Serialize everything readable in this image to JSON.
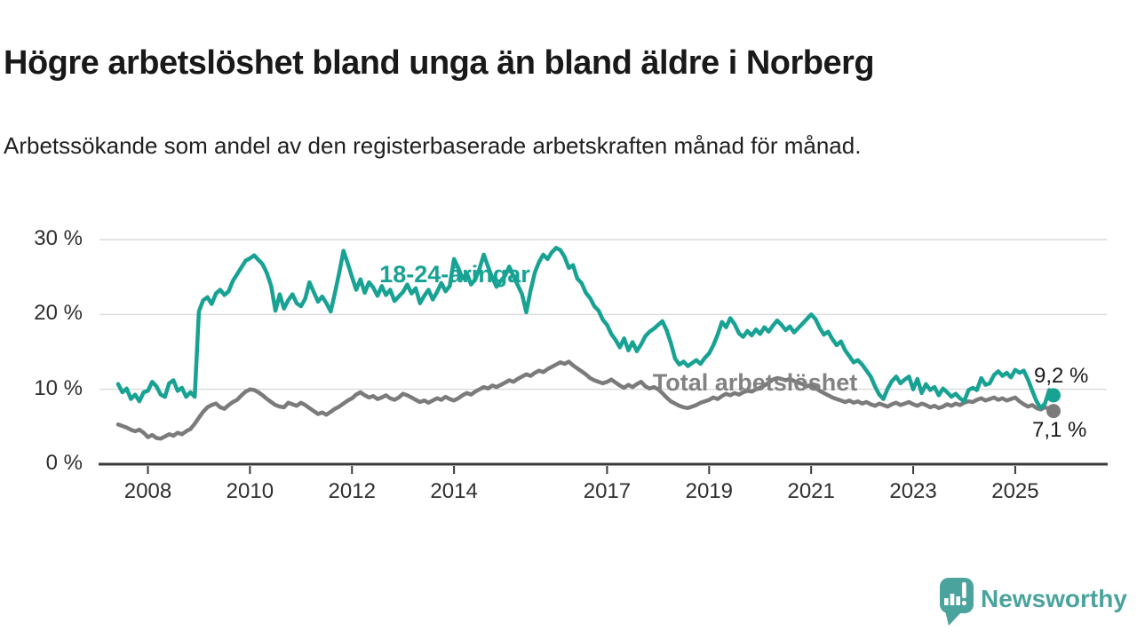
{
  "header": {
    "title": "Högre arbetslöshet bland unga än bland äldre i Norberg",
    "subtitle": "Arbetssökande som andel av den registerbaserade arbetskraften månad för månad."
  },
  "chart_data": {
    "type": "line",
    "unit": "%",
    "x_start_month": "2007-06",
    "x_end_month": "2025-10",
    "ylim": [
      0,
      30
    ],
    "grid": "horizontal",
    "colors": {
      "young": "#18a294",
      "total": "#7b7b7b",
      "total_label": "#828282",
      "gridline": "#dcdcdc",
      "axis": "#3a3a3a"
    },
    "y_ticks": [
      {
        "value": 30,
        "label": "30 %"
      },
      {
        "value": 20,
        "label": "20 %"
      },
      {
        "value": 10,
        "label": "10 %"
      },
      {
        "value": 0,
        "label": "0 %"
      }
    ],
    "x_ticks": [
      {
        "year": 2008,
        "label": "2008"
      },
      {
        "year": 2010,
        "label": "2010"
      },
      {
        "year": 2012,
        "label": "2012"
      },
      {
        "year": 2014,
        "label": "2014"
      },
      {
        "year": 2017,
        "label": "2017"
      },
      {
        "year": 2019,
        "label": "2019"
      },
      {
        "year": 2021,
        "label": "2021"
      },
      {
        "year": 2023,
        "label": "2023"
      },
      {
        "year": 2025,
        "label": "2025"
      }
    ],
    "series": [
      {
        "name": "18-24-åringar",
        "color": "#18a294",
        "end_label": "9,2 %",
        "end_value": 9.2,
        "values": [
          10.7,
          9.6,
          10.1,
          8.7,
          9.3,
          8.4,
          9.6,
          9.8,
          11.0,
          10.4,
          9.3,
          9.0,
          10.8,
          11.2,
          9.8,
          10.2,
          9.0,
          9.6,
          9.0,
          20.4,
          21.9,
          22.3,
          21.4,
          22.8,
          23.3,
          22.6,
          23.1,
          24.5,
          25.4,
          26.3,
          27.2,
          27.5,
          27.9,
          27.3,
          26.7,
          25.5,
          23.8,
          20.5,
          22.7,
          20.8,
          21.9,
          22.7,
          21.5,
          21.1,
          22.1,
          24.3,
          23.0,
          21.7,
          22.4,
          21.5,
          20.4,
          22.9,
          25.6,
          28.5,
          26.8,
          25.0,
          23.3,
          24.7,
          22.9,
          24.3,
          23.6,
          22.5,
          23.8,
          22.6,
          23.3,
          21.8,
          22.4,
          23.0,
          24.0,
          22.8,
          23.5,
          21.5,
          22.5,
          23.3,
          22.0,
          23.0,
          24.2,
          23.1,
          23.8,
          27.4,
          26.2,
          24.8,
          25.5,
          24.0,
          24.7,
          26.1,
          28.0,
          26.4,
          24.9,
          23.7,
          24.5,
          25.2,
          26.4,
          25.1,
          23.9,
          22.7,
          20.3,
          23.2,
          25.6,
          27.0,
          28.0,
          27.4,
          28.3,
          28.9,
          28.6,
          27.7,
          26.2,
          26.6,
          24.8,
          24.2,
          22.9,
          22.2,
          21.1,
          20.5,
          19.3,
          18.6,
          17.4,
          16.6,
          15.6,
          16.8,
          15.2,
          16.3,
          15.1,
          16.0,
          17.1,
          17.7,
          18.1,
          18.6,
          19.1,
          17.9,
          16.2,
          14.1,
          13.3,
          13.7,
          13.1,
          13.5,
          13.9,
          13.4,
          14.2,
          14.8,
          15.9,
          17.3,
          19.0,
          18.3,
          19.5,
          18.7,
          17.5,
          17.0,
          17.8,
          17.2,
          18.0,
          17.4,
          18.3,
          17.7,
          18.5,
          19.2,
          18.6,
          17.9,
          18.4,
          17.6,
          18.2,
          18.8,
          19.4,
          20.0,
          19.4,
          18.2,
          17.3,
          17.7,
          16.7,
          15.9,
          16.4,
          15.2,
          14.4,
          13.6,
          13.9,
          13.3,
          12.5,
          11.7,
          10.4,
          9.3,
          8.7,
          10.1,
          11.1,
          11.7,
          10.8,
          11.3,
          11.7,
          10.0,
          11.4,
          9.5,
          10.7,
          9.9,
          10.3,
          9.2,
          10.1,
          9.6,
          9.0,
          9.4,
          8.8,
          8.4,
          9.9,
          10.2,
          9.9,
          11.5,
          10.6,
          10.8,
          11.9,
          12.4,
          11.8,
          12.2,
          11.6,
          12.6,
          12.2,
          12.5,
          11.3,
          9.8,
          8.4,
          7.5,
          8.1,
          9.9,
          9.2
        ]
      },
      {
        "name": "Total arbetslöshet",
        "color": "#7b7b7b",
        "end_label": "7,1 %",
        "end_value": 7.1,
        "values": [
          5.3,
          5.1,
          4.9,
          4.6,
          4.4,
          4.6,
          4.2,
          3.6,
          3.9,
          3.5,
          3.4,
          3.7,
          4.0,
          3.8,
          4.2,
          4.0,
          4.4,
          4.7,
          5.4,
          6.2,
          7.0,
          7.6,
          7.9,
          8.1,
          7.6,
          7.4,
          7.9,
          8.3,
          8.6,
          9.2,
          9.7,
          10.0,
          9.9,
          9.6,
          9.2,
          8.7,
          8.3,
          7.9,
          7.7,
          7.6,
          8.2,
          8.0,
          7.8,
          8.2,
          7.9,
          7.5,
          7.1,
          6.7,
          6.9,
          6.6,
          7.0,
          7.4,
          7.7,
          8.1,
          8.5,
          8.8,
          9.3,
          9.6,
          9.2,
          8.9,
          9.1,
          8.7,
          8.9,
          9.2,
          8.8,
          8.6,
          8.9,
          9.4,
          9.2,
          8.9,
          8.6,
          8.3,
          8.5,
          8.2,
          8.5,
          8.8,
          8.6,
          9.0,
          8.7,
          8.5,
          8.8,
          9.2,
          9.5,
          9.3,
          9.7,
          10.0,
          10.3,
          10.1,
          10.5,
          10.3,
          10.6,
          10.9,
          11.2,
          11.0,
          11.4,
          11.7,
          12.0,
          11.8,
          12.2,
          12.5,
          12.3,
          12.7,
          13.0,
          13.3,
          13.6,
          13.4,
          13.7,
          13.2,
          12.8,
          12.4,
          12.0,
          11.5,
          11.2,
          11.0,
          10.8,
          11.0,
          11.3,
          10.9,
          10.5,
          10.2,
          10.6,
          10.3,
          10.7,
          11.0,
          10.4,
          10.1,
          10.3,
          10.0,
          9.5,
          8.9,
          8.4,
          8.1,
          7.8,
          7.6,
          7.5,
          7.7,
          7.9,
          8.2,
          8.4,
          8.6,
          8.9,
          8.7,
          9.1,
          9.4,
          9.2,
          9.5,
          9.3,
          9.6,
          9.8,
          9.7,
          10.0,
          10.2,
          10.5,
          10.9,
          11.3,
          11.5,
          11.4,
          11.2,
          11.4,
          11.1,
          10.9,
          10.7,
          10.4,
          10.6,
          10.2,
          9.8,
          9.5,
          9.2,
          8.9,
          8.7,
          8.5,
          8.3,
          8.5,
          8.2,
          8.4,
          8.1,
          8.3,
          8.0,
          7.8,
          8.1,
          7.9,
          7.7,
          8.0,
          8.2,
          7.9,
          8.1,
          8.3,
          8.0,
          7.8,
          8.1,
          7.9,
          7.6,
          7.8,
          7.5,
          7.7,
          8.0,
          7.8,
          8.1,
          7.9,
          8.2,
          8.4,
          8.3,
          8.6,
          8.8,
          8.5,
          8.7,
          8.9,
          8.6,
          8.8,
          8.5,
          8.7,
          8.9,
          8.4,
          8.0,
          7.7,
          7.9,
          7.5,
          7.3,
          7.6,
          7.4,
          7.1
        ]
      }
    ]
  },
  "footer": {
    "brand": "Newsworthy"
  }
}
